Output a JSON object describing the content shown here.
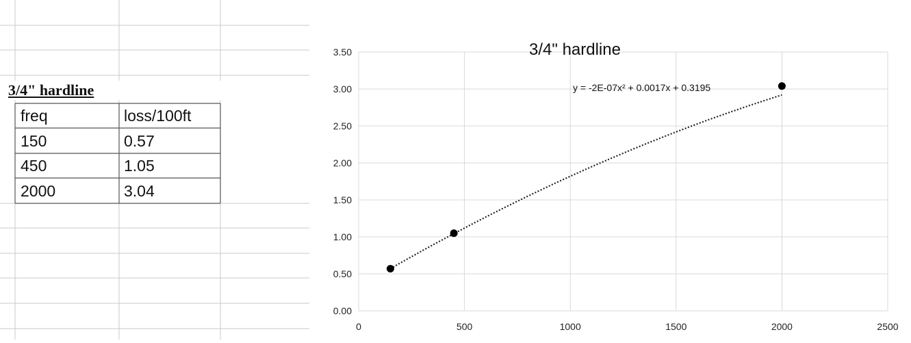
{
  "sheet": {
    "table_title": "3/4\" hardline",
    "header": [
      "freq",
      "loss/100ft"
    ],
    "rows": [
      [
        "150",
        "0.57"
      ],
      [
        "450",
        "1.05"
      ],
      [
        "2000",
        "3.04"
      ]
    ]
  },
  "chart_data": {
    "type": "scatter",
    "title": "3/4\" hardline",
    "xlabel": "",
    "ylabel": "",
    "xlim": [
      0,
      2500
    ],
    "ylim": [
      0,
      3.5
    ],
    "x_ticks": [
      "0",
      "500",
      "1000",
      "1500",
      "2000",
      "2500"
    ],
    "y_ticks": [
      "0.00",
      "0.50",
      "1.00",
      "1.50",
      "2.00",
      "2.50",
      "3.00",
      "3.50"
    ],
    "grid": true,
    "legend": "none",
    "series": [
      {
        "x": [
          150,
          450,
          2000
        ],
        "y": [
          0.57,
          1.05,
          3.04
        ],
        "color": "#000000"
      }
    ],
    "trendline": {
      "type": "polynomial",
      "order": 2,
      "coefficients": [
        -2e-07,
        0.0017,
        0.3195
      ],
      "equation": "y = -2E-07x² + 0.0017x + 0.3195",
      "style": "dotted"
    }
  }
}
